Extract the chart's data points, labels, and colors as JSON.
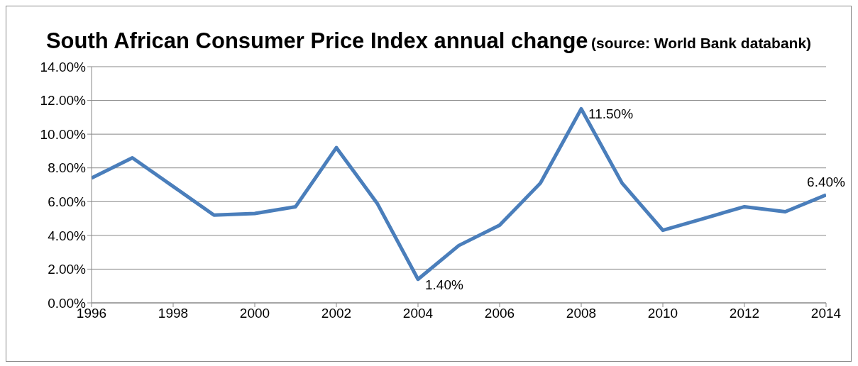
{
  "chart_data": {
    "type": "line",
    "title": "South African Consumer Price Index annual change",
    "subtitle": "(source: World Bank databank)",
    "x": [
      1996,
      1997,
      1998,
      1999,
      2000,
      2001,
      2002,
      2003,
      2004,
      2005,
      2006,
      2007,
      2008,
      2009,
      2010,
      2011,
      2012,
      2013,
      2014
    ],
    "series": [
      {
        "color": "#4a7ebb",
        "values": [
          7.4,
          8.6,
          6.9,
          5.2,
          5.3,
          5.7,
          9.2,
          5.9,
          1.4,
          3.4,
          4.6,
          7.1,
          11.5,
          7.1,
          4.3,
          5.0,
          5.7,
          5.4,
          6.4
        ],
        "value_labels": [
          null,
          null,
          null,
          null,
          null,
          null,
          null,
          null,
          "1.40%",
          null,
          null,
          null,
          "11.50%",
          null,
          null,
          null,
          null,
          null,
          "6.40%"
        ]
      }
    ],
    "xlim": [
      1996,
      2014
    ],
    "xticks": [
      1996,
      1998,
      2000,
      2002,
      2004,
      2006,
      2008,
      2010,
      2012,
      2014
    ],
    "ylim": [
      0,
      14
    ],
    "yticks": [
      {
        "value": 0,
        "label": "0.00%"
      },
      {
        "value": 2,
        "label": "2.00%"
      },
      {
        "value": 4,
        "label": "4.00%"
      },
      {
        "value": 6,
        "label": "6.00%"
      },
      {
        "value": 8,
        "label": "8.00%"
      },
      {
        "value": 10,
        "label": "10.00%"
      },
      {
        "value": 12,
        "label": "12.00%"
      },
      {
        "value": 14,
        "label": "14.00%"
      }
    ],
    "grid": "y",
    "legend": false,
    "marker": "none",
    "line_style": "solid"
  }
}
